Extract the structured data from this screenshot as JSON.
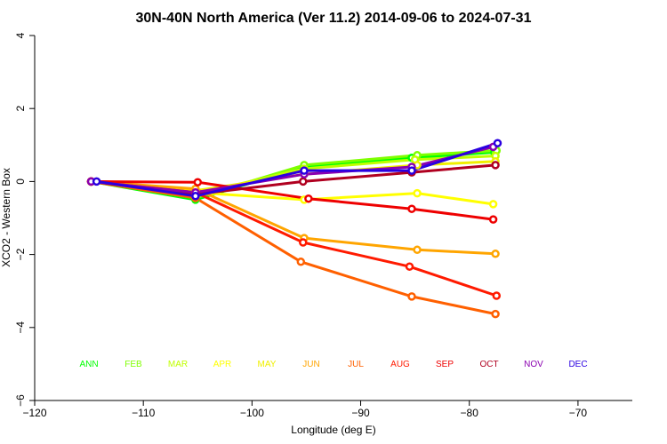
{
  "chart_data": {
    "type": "line",
    "title": "30N-40N North America (Ver 11.2)   2014-09-06 to 2024-07-31",
    "xlabel": "Longitude (deg E)",
    "ylabel": "XCO2 - Western Box",
    "xlim": [
      -120,
      -65
    ],
    "ylim": [
      -6,
      4
    ],
    "xticks": [
      -120,
      -110,
      -100,
      -90,
      -80,
      -70
    ],
    "yticks": [
      -6,
      -4,
      -2,
      0,
      2,
      4
    ],
    "legend_position": "bottom",
    "month_labels": [
      {
        "label": "ANN",
        "color": "#00ff00"
      },
      {
        "label": "FEB",
        "color": "#7fff00"
      },
      {
        "label": "MAR",
        "color": "#c0ff00"
      },
      {
        "label": "APR",
        "color": "#ffff00"
      },
      {
        "label": "MAY",
        "color": "#f0f000"
      },
      {
        "label": "JUN",
        "color": "#ffa500"
      },
      {
        "label": "JUL",
        "color": "#ff6000"
      },
      {
        "label": "AUG",
        "color": "#ff1a00"
      },
      {
        "label": "SEP",
        "color": "#ee0000"
      },
      {
        "label": "OCT",
        "color": "#b00020"
      },
      {
        "label": "NOV",
        "color": "#8a00b0"
      },
      {
        "label": "DEC",
        "color": "#2a00e0"
      }
    ],
    "series": [
      {
        "name": "ANN",
        "color": "#00ff00",
        "x": [
          -114.8,
          -105.2,
          -95.2,
          -85.3,
          -77.7
        ],
        "y": [
          0.0,
          -0.5,
          0.4,
          0.65,
          0.8
        ]
      },
      {
        "name": "FEB",
        "color": "#7fff00",
        "x": [
          -114.8,
          -105.2,
          -95.2,
          -84.8,
          -77.5
        ],
        "y": [
          0.0,
          -0.45,
          0.45,
          0.72,
          0.85
        ]
      },
      {
        "name": "MAR",
        "color": "#c0ff00",
        "x": [
          -114.8,
          -105.2,
          -95.2,
          -85.0,
          -77.6
        ],
        "y": [
          0.0,
          -0.35,
          0.35,
          0.6,
          0.7
        ]
      },
      {
        "name": "APR",
        "color": "#ffff00",
        "x": [
          -114.8,
          -105.2,
          -95.2,
          -84.8,
          -77.8
        ],
        "y": [
          0.0,
          -0.3,
          -0.5,
          -0.32,
          -0.62
        ]
      },
      {
        "name": "MAY",
        "color": "#f0f000",
        "x": [
          -114.8,
          -105.2,
          -95.2,
          -84.8,
          -77.6
        ],
        "y": [
          0.0,
          -0.25,
          0.2,
          0.45,
          0.55
        ]
      },
      {
        "name": "JUN",
        "color": "#ffa500",
        "x": [
          -114.8,
          -105.2,
          -95.2,
          -84.8,
          -77.6
        ],
        "y": [
          0.0,
          -0.2,
          -1.55,
          -1.87,
          -1.98
        ]
      },
      {
        "name": "JUL",
        "color": "#ff6000",
        "x": [
          -114.8,
          -105.2,
          -95.5,
          -85.3,
          -77.6
        ],
        "y": [
          0.0,
          -0.45,
          -2.2,
          -3.15,
          -3.63
        ]
      },
      {
        "name": "AUG",
        "color": "#ff1a00",
        "x": [
          -114.8,
          -105.2,
          -95.3,
          -85.5,
          -77.5
        ],
        "y": [
          0.0,
          -0.3,
          -1.67,
          -2.33,
          -3.13
        ]
      },
      {
        "name": "SEP",
        "color": "#ee0000",
        "x": [
          -114.8,
          -105.0,
          -94.8,
          -85.3,
          -77.8
        ],
        "y": [
          0.0,
          -0.02,
          -0.47,
          -0.75,
          -1.04
        ]
      },
      {
        "name": "OCT",
        "color": "#b00020",
        "x": [
          -114.8,
          -105.2,
          -95.3,
          -85.3,
          -77.6
        ],
        "y": [
          0.0,
          -0.35,
          0.0,
          0.25,
          0.45
        ]
      },
      {
        "name": "NOV",
        "color": "#8a00b0",
        "x": [
          -114.8,
          -105.2,
          -95.2,
          -85.3,
          -77.8
        ],
        "y": [
          0.0,
          -0.3,
          0.2,
          0.4,
          0.95
        ]
      },
      {
        "name": "DEC",
        "color": "#2a00e0",
        "x": [
          -114.3,
          -105.2,
          -95.2,
          -85.3,
          -77.4
        ],
        "y": [
          0.0,
          -0.4,
          0.3,
          0.3,
          1.05
        ]
      }
    ]
  }
}
